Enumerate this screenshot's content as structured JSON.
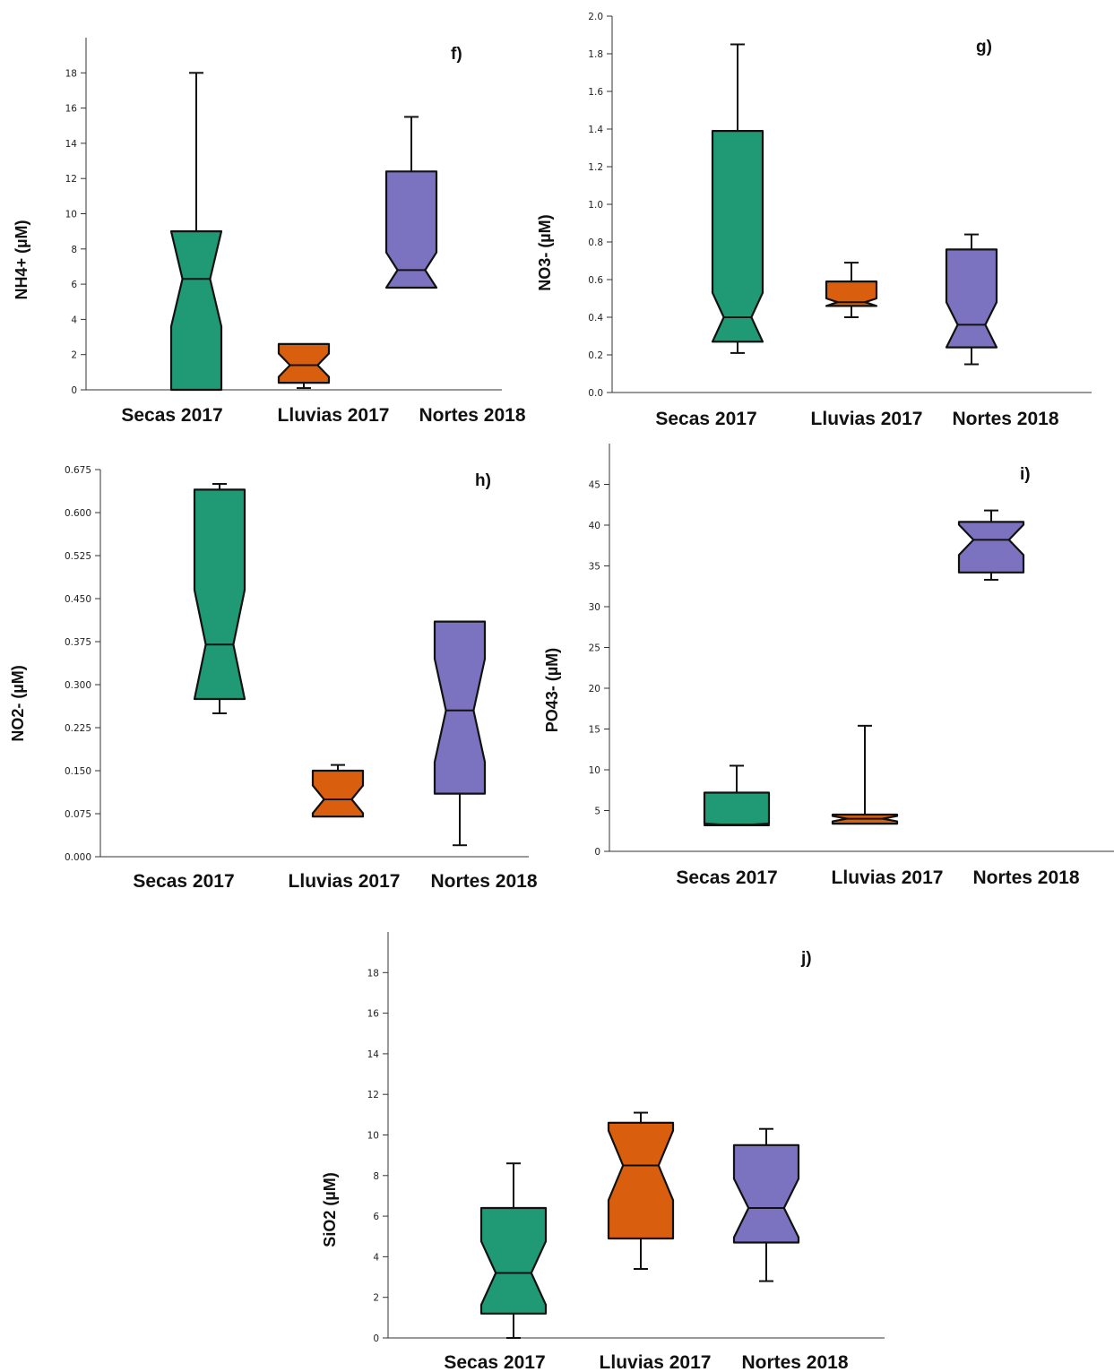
{
  "colors": {
    "Secas 2017": "#1f9a74",
    "Lluvias 2017": "#d95f0e",
    "Nortes 2018": "#7b73c0"
  },
  "chart_data": [
    {
      "type": "boxplot",
      "panel": "f)",
      "ylabel": "NH4+ (µM)",
      "categories": [
        "Secas 2017",
        "Lluvias 2017",
        "Nortes 2018"
      ],
      "ylim": [
        0,
        20
      ],
      "yticks": [
        "0",
        "2",
        "4",
        "6",
        "8",
        "10",
        "12",
        "14",
        "16",
        "18"
      ],
      "boxes": [
        {
          "min": 0,
          "q1": 0,
          "median": 6.3,
          "q3": 9.0,
          "max": 18.0
        },
        {
          "min": 0.1,
          "q1": 0.4,
          "median": 1.4,
          "q3": 2.6,
          "max": 2.6
        },
        {
          "min": 5.8,
          "q1": 5.8,
          "median": 6.8,
          "q3": 12.4,
          "max": 15.5
        }
      ]
    },
    {
      "type": "boxplot",
      "panel": "g)",
      "ylabel": "NO3- (µM)",
      "categories": [
        "Secas 2017",
        "Lluvias 2017",
        "Nortes 2018"
      ],
      "ylim": [
        0,
        2.0
      ],
      "yticks": [
        "0.0",
        "0.2",
        "0.4",
        "0.6",
        "0.8",
        "1.0",
        "1.2",
        "1.4",
        "1.6",
        "1.8",
        "2.0"
      ],
      "boxes": [
        {
          "min": 0.21,
          "q1": 0.27,
          "median": 0.4,
          "q3": 1.39,
          "max": 1.85
        },
        {
          "min": 0.4,
          "q1": 0.46,
          "median": 0.48,
          "q3": 0.59,
          "max": 0.69
        },
        {
          "min": 0.15,
          "q1": 0.24,
          "median": 0.36,
          "q3": 0.76,
          "max": 0.84
        }
      ]
    },
    {
      "type": "boxplot",
      "panel": "h)",
      "ylabel": "NO2- (µM)",
      "categories": [
        "Secas 2017",
        "Lluvias 2017",
        "Nortes 2018"
      ],
      "ylim": [
        0,
        0.675
      ],
      "yticks": [
        "0.000",
        "0.075",
        "0.150",
        "0.225",
        "0.300",
        "0.375",
        "0.450",
        "0.525",
        "0.600",
        "0.675"
      ],
      "boxes": [
        {
          "min": 0.25,
          "q1": 0.275,
          "median": 0.37,
          "q3": 0.64,
          "max": 0.65
        },
        {
          "min": 0.07,
          "q1": 0.07,
          "median": 0.1,
          "q3": 0.15,
          "max": 0.16
        },
        {
          "min": 0.02,
          "q1": 0.11,
          "median": 0.255,
          "q3": 0.41,
          "max": 0.41
        }
      ]
    },
    {
      "type": "boxplot",
      "panel": "i)",
      "ylabel": "PO43- (µM)",
      "categories": [
        "Secas 2017",
        "Lluvias 2017",
        "Nortes 2018"
      ],
      "ylim": [
        0,
        50
      ],
      "yticks": [
        "0",
        "5",
        "10",
        "15",
        "20",
        "25",
        "30",
        "35",
        "40",
        "45"
      ],
      "boxes": [
        {
          "min": 3.2,
          "q1": 3.2,
          "median": 3.3,
          "q3": 7.2,
          "max": 10.5
        },
        {
          "min": 3.4,
          "q1": 3.4,
          "median": 4.0,
          "q3": 4.5,
          "max": 15.4
        },
        {
          "min": 33.3,
          "q1": 34.2,
          "median": 38.2,
          "q3": 40.4,
          "max": 41.8
        }
      ]
    },
    {
      "type": "boxplot",
      "panel": "j)",
      "ylabel": "SiO2 (µM)",
      "categories": [
        "Secas 2017",
        "Lluvias 2017",
        "Nortes 2018"
      ],
      "ylim": [
        0,
        20
      ],
      "yticks": [
        "0",
        "2",
        "4",
        "6",
        "8",
        "10",
        "12",
        "14",
        "16",
        "18"
      ],
      "boxes": [
        {
          "min": 0,
          "q1": 1.2,
          "median": 3.2,
          "q3": 6.4,
          "max": 8.6
        },
        {
          "min": 3.4,
          "q1": 4.9,
          "median": 8.5,
          "q3": 10.6,
          "max": 11.1
        },
        {
          "min": 2.8,
          "q1": 4.7,
          "median": 6.4,
          "q3": 9.5,
          "max": 10.3
        }
      ]
    }
  ]
}
